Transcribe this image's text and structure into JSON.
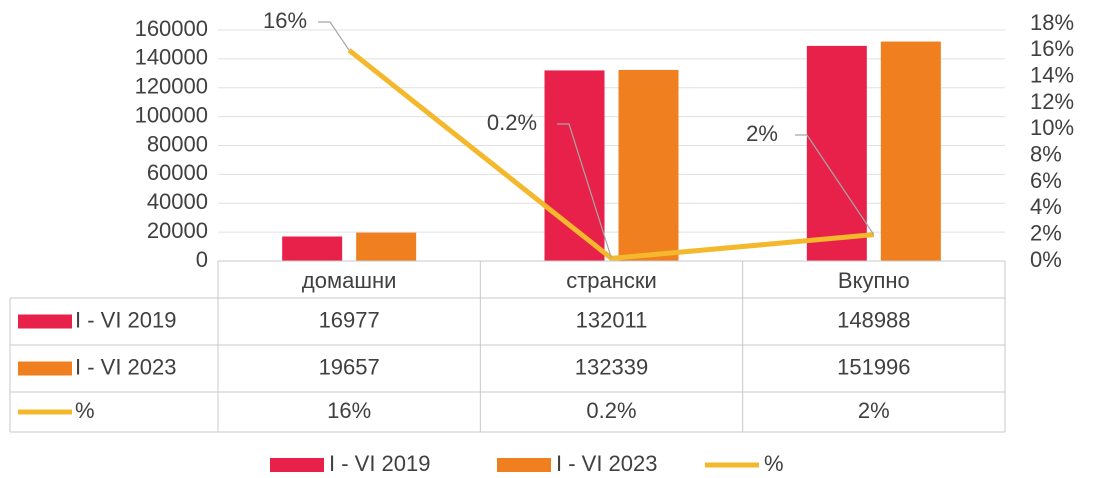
{
  "chart_data": {
    "type": "bar",
    "categories": [
      "домашни",
      "странски",
      "Вкупно"
    ],
    "series": [
      {
        "name": "I - VI 2019",
        "color": "#e8214a",
        "values": [
          16977,
          132011,
          148988
        ]
      },
      {
        "name": "I - VI 2023",
        "color": "#f07f20",
        "values": [
          19657,
          132339,
          151996
        ]
      },
      {
        "name": "%",
        "color": "#f4b82c",
        "type": "line",
        "axis": "y2",
        "values": [
          16,
          0.2,
          2
        ],
        "value_labels": [
          "16%",
          "0.2%",
          "2%"
        ]
      }
    ],
    "ylim": [
      0,
      160000
    ],
    "yticks": [
      0,
      20000,
      40000,
      60000,
      80000,
      100000,
      120000,
      140000,
      160000
    ],
    "y2lim": [
      0,
      18
    ],
    "y2ticks": [
      {
        "value": 0,
        "label": "0%"
      },
      {
        "value": 2,
        "label": "2%"
      },
      {
        "value": 4,
        "label": "4%"
      },
      {
        "value": 6,
        "label": "6%"
      },
      {
        "value": 8,
        "label": "8%"
      },
      {
        "value": 10,
        "label": "10%"
      },
      {
        "value": 12,
        "label": "12%"
      },
      {
        "value": 14,
        "label": "14%"
      },
      {
        "value": 16,
        "label": "16%"
      },
      {
        "value": 18,
        "label": "18%"
      }
    ],
    "grid": true,
    "data_table": true,
    "legend": "bottom"
  }
}
